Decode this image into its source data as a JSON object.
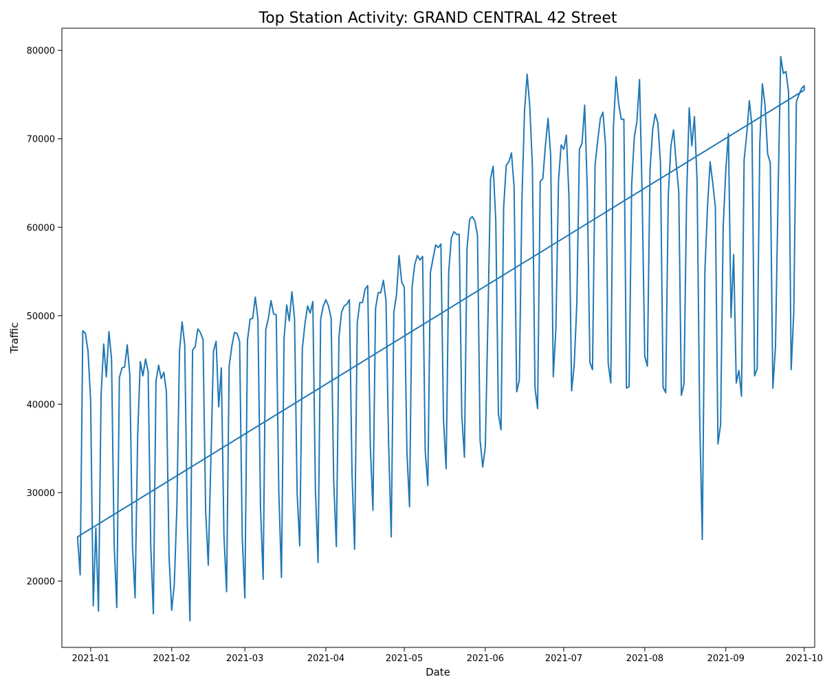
{
  "chart_data": {
    "type": "line",
    "title": "Top Station Activity: GRAND CENTRAL 42 Street",
    "xlabel": "Date",
    "ylabel": "Traffic",
    "x_ticks": [
      "2021-01",
      "2021-02",
      "2021-03",
      "2021-04",
      "2021-05",
      "2021-06",
      "2021-07",
      "2021-08",
      "2021-09",
      "2021-10"
    ],
    "y_ticks": [
      20000,
      30000,
      40000,
      50000,
      60000,
      70000,
      80000
    ],
    "y_tick_labels": [
      "20000",
      "30000",
      "40000",
      "50000",
      "60000",
      "70000",
      "80000"
    ],
    "xlim": [
      "2020-12-21",
      "2021-10-05"
    ],
    "ylim": [
      12500,
      82500
    ],
    "grid": false,
    "series_color": "#1f77b4",
    "x": [
      "2020-12-27",
      "2020-12-28",
      "2020-12-29",
      "2020-12-30",
      "2020-12-31",
      "2021-01-01",
      "2021-01-02",
      "2021-01-03",
      "2021-01-04",
      "2021-01-05",
      "2021-01-06",
      "2021-01-07",
      "2021-01-08",
      "2021-01-09",
      "2021-01-10",
      "2021-01-11",
      "2021-01-12",
      "2021-01-13",
      "2021-01-14",
      "2021-01-15",
      "2021-01-16",
      "2021-01-17",
      "2021-01-18",
      "2021-01-19",
      "2021-01-20",
      "2021-01-21",
      "2021-01-22",
      "2021-01-23",
      "2021-01-24",
      "2021-01-25",
      "2021-01-26",
      "2021-01-27",
      "2021-01-28",
      "2021-01-29",
      "2021-01-30",
      "2021-01-31",
      "2021-02-01",
      "2021-02-02",
      "2021-02-03",
      "2021-02-04",
      "2021-02-05",
      "2021-02-06",
      "2021-02-07",
      "2021-02-08",
      "2021-02-09",
      "2021-02-10",
      "2021-02-11",
      "2021-02-12",
      "2021-02-13",
      "2021-02-14",
      "2021-02-15",
      "2021-02-16",
      "2021-02-17",
      "2021-02-18",
      "2021-02-19",
      "2021-02-20",
      "2021-02-21",
      "2021-02-22",
      "2021-02-23",
      "2021-02-24",
      "2021-02-25",
      "2021-02-26",
      "2021-02-27",
      "2021-02-28",
      "2021-03-01",
      "2021-03-02",
      "2021-03-03",
      "2021-03-04",
      "2021-03-05",
      "2021-03-06",
      "2021-03-07",
      "2021-03-08",
      "2021-03-09",
      "2021-03-10",
      "2021-03-11",
      "2021-03-12",
      "2021-03-13",
      "2021-03-14",
      "2021-03-15",
      "2021-03-16",
      "2021-03-17",
      "2021-03-18",
      "2021-03-19",
      "2021-03-20",
      "2021-03-21",
      "2021-03-22",
      "2021-03-23",
      "2021-03-24",
      "2021-03-25",
      "2021-03-26",
      "2021-03-27",
      "2021-03-28",
      "2021-03-29",
      "2021-03-30",
      "2021-03-31",
      "2021-04-01",
      "2021-04-02",
      "2021-04-03",
      "2021-04-04",
      "2021-04-05",
      "2021-04-06",
      "2021-04-07",
      "2021-04-08",
      "2021-04-09",
      "2021-04-10",
      "2021-04-11",
      "2021-04-12",
      "2021-04-13",
      "2021-04-14",
      "2021-04-15",
      "2021-04-16",
      "2021-04-17",
      "2021-04-18",
      "2021-04-19",
      "2021-04-20",
      "2021-04-21",
      "2021-04-22",
      "2021-04-23",
      "2021-04-24",
      "2021-04-25",
      "2021-04-26",
      "2021-04-27",
      "2021-04-28",
      "2021-04-29",
      "2021-04-30",
      "2021-05-01",
      "2021-05-02",
      "2021-05-03",
      "2021-05-04",
      "2021-05-05",
      "2021-05-06",
      "2021-05-07",
      "2021-05-08",
      "2021-05-09",
      "2021-05-10",
      "2021-05-11",
      "2021-05-12",
      "2021-05-13",
      "2021-05-14",
      "2021-05-15",
      "2021-05-16",
      "2021-05-17",
      "2021-05-18",
      "2021-05-19",
      "2021-05-20",
      "2021-05-21",
      "2021-05-22",
      "2021-05-23",
      "2021-05-24",
      "2021-05-25",
      "2021-05-26",
      "2021-05-27",
      "2021-05-28",
      "2021-05-29",
      "2021-05-30",
      "2021-05-31",
      "2021-06-01",
      "2021-06-02",
      "2021-06-03",
      "2021-06-04",
      "2021-06-05",
      "2021-06-06",
      "2021-06-07",
      "2021-06-08",
      "2021-06-09",
      "2021-06-10",
      "2021-06-11",
      "2021-06-12",
      "2021-06-13",
      "2021-06-14",
      "2021-06-15",
      "2021-06-16",
      "2021-06-17",
      "2021-06-18",
      "2021-06-19",
      "2021-06-20",
      "2021-06-21",
      "2021-06-22",
      "2021-06-23",
      "2021-06-24",
      "2021-06-25",
      "2021-06-26",
      "2021-06-27",
      "2021-06-28",
      "2021-06-29",
      "2021-06-30",
      "2021-07-01",
      "2021-07-02",
      "2021-07-03",
      "2021-07-04",
      "2021-07-05",
      "2021-07-06",
      "2021-07-07",
      "2021-07-08",
      "2021-07-09",
      "2021-07-10",
      "2021-07-11",
      "2021-07-12",
      "2021-07-13",
      "2021-07-14",
      "2021-07-15",
      "2021-07-16",
      "2021-07-17",
      "2021-07-18",
      "2021-07-19",
      "2021-07-20",
      "2021-07-21",
      "2021-07-22",
      "2021-07-23",
      "2021-07-24",
      "2021-07-25",
      "2021-07-26",
      "2021-07-27",
      "2021-07-28",
      "2021-07-29",
      "2021-07-30",
      "2021-07-31",
      "2021-08-01",
      "2021-08-02",
      "2021-08-03",
      "2021-08-04",
      "2021-08-05",
      "2021-08-06",
      "2021-08-07",
      "2021-08-08",
      "2021-08-09",
      "2021-08-10",
      "2021-08-11",
      "2021-08-12",
      "2021-08-13",
      "2021-08-14",
      "2021-08-15",
      "2021-08-16",
      "2021-08-17",
      "2021-08-18",
      "2021-08-19",
      "2021-08-20",
      "2021-08-21",
      "2021-08-22",
      "2021-08-23",
      "2021-08-24",
      "2021-08-25",
      "2021-08-26",
      "2021-08-27",
      "2021-08-28",
      "2021-08-29",
      "2021-08-30",
      "2021-08-31",
      "2021-09-01",
      "2021-09-02",
      "2021-09-03",
      "2021-09-04",
      "2021-09-05",
      "2021-09-06",
      "2021-09-07",
      "2021-09-08",
      "2021-09-09",
      "2021-09-10",
      "2021-09-11",
      "2021-09-12",
      "2021-09-13",
      "2021-09-14",
      "2021-09-15",
      "2021-09-16",
      "2021-09-17",
      "2021-09-18",
      "2021-09-19",
      "2021-09-20",
      "2021-09-21",
      "2021-09-22",
      "2021-09-23",
      "2021-09-24",
      "2021-09-25",
      "2021-09-26",
      "2021-09-27",
      "2021-09-28",
      "2021-09-29",
      "2021-09-30",
      "2021-10-01",
      "2021-10-01",
      "2020-12-27"
    ],
    "y": [
      25000,
      20700,
      48300,
      48000,
      46000,
      40400,
      17200,
      26000,
      16600,
      41000,
      46800,
      43100,
      48200,
      45100,
      24200,
      17000,
      43000,
      44100,
      44200,
      46700,
      43300,
      24000,
      18100,
      36500,
      44800,
      43200,
      45100,
      43700,
      24000,
      16300,
      42600,
      44400,
      42900,
      43600,
      41400,
      22800,
      16700,
      19600,
      28400,
      46000,
      49300,
      46700,
      26500,
      15500,
      46100,
      46500,
      48500,
      48100,
      47300,
      28000,
      21800,
      33700,
      46000,
      47100,
      39700,
      44100,
      25200,
      18800,
      44300,
      46500,
      48100,
      48000,
      47100,
      25000,
      18100,
      47200,
      49600,
      49700,
      52100,
      49600,
      28300,
      20200,
      48400,
      49700,
      51700,
      50200,
      50100,
      30000,
      20400,
      47400,
      51200,
      49400,
      52700,
      49700,
      30000,
      24000,
      46300,
      49100,
      51100,
      50300,
      51600,
      30300,
      22100,
      49600,
      51100,
      51800,
      51100,
      49700,
      31300,
      23900,
      47600,
      50400,
      51100,
      51300,
      51800,
      32100,
      23600,
      49200,
      51500,
      51500,
      53000,
      53400,
      35300,
      28000,
      50800,
      52600,
      52600,
      54000,
      51700,
      35500,
      25000,
      50400,
      52300,
      56800,
      53800,
      53200,
      34600,
      28400,
      53300,
      55800,
      56800,
      56300,
      56700,
      34700,
      30800,
      54900,
      56500,
      58000,
      57700,
      58100,
      38300,
      32700,
      55000,
      58800,
      59500,
      59200,
      59200,
      38700,
      34000,
      57600,
      60900,
      61200,
      60700,
      59100,
      35900,
      32900,
      35200,
      49700,
      65500,
      66900,
      60700,
      38900,
      37100,
      62200,
      67000,
      67400,
      68400,
      64600,
      41400,
      42700,
      63100,
      73200,
      77300,
      73700,
      66900,
      41800,
      39500,
      65200,
      65500,
      69300,
      72300,
      68100,
      43100,
      48600,
      65300,
      69300,
      68800,
      70400,
      63400,
      41500,
      44400,
      51300,
      68800,
      69500,
      73800,
      64300,
      44700,
      43900,
      67100,
      69800,
      72300,
      73000,
      69200,
      44600,
      42400,
      71300,
      77000,
      74000,
      72200,
      72200,
      41800,
      42000,
      64900,
      70200,
      72000,
      76700,
      63500,
      45400,
      44300,
      66400,
      71000,
      72800,
      71800,
      67300,
      41900,
      41300,
      63700,
      69200,
      71000,
      67300,
      64000,
      41000,
      42300,
      63400,
      73500,
      69200,
      72500,
      65300,
      38700,
      24700,
      55100,
      62300,
      67400,
      65000,
      62300,
      35500,
      37700,
      60100,
      66500,
      70600,
      49800,
      56900,
      42400,
      43800,
      40900,
      67600,
      70500,
      74300,
      71500,
      43200,
      44000,
      69500,
      76200,
      73800,
      68300,
      67300,
      41800,
      46500,
      63800,
      79300,
      77400,
      77600,
      75300,
      43900,
      50400,
      74200,
      75000,
      75700,
      76000,
      75500,
      25000
    ]
  }
}
